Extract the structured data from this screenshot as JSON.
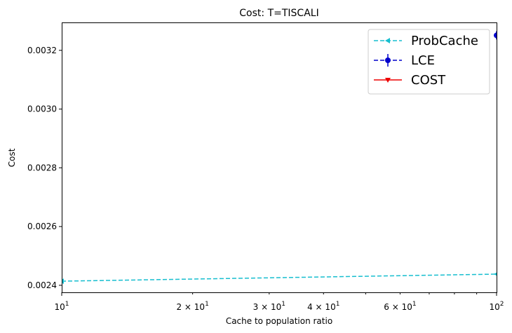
{
  "chart_data": {
    "type": "line",
    "title": "Cost: T=TISCALI",
    "xlabel": "Cache to population ratio",
    "ylabel": "Cost",
    "xscale": "log",
    "xlim": [
      10,
      100
    ],
    "ylim": [
      0.002376,
      0.003295
    ],
    "yticks": [
      0.0024,
      0.0026,
      0.0028,
      0.003,
      0.0032
    ],
    "ytick_labels": [
      "0.0024",
      "0.0026",
      "0.0028",
      "0.0030",
      "0.0032"
    ],
    "xticks_major": [
      10,
      100
    ],
    "xtick_major_labels": [
      [
        "10",
        "1"
      ],
      [
        "10",
        "2"
      ]
    ],
    "xticks_minor_labeled": [
      20,
      30,
      40,
      60
    ],
    "xtick_minor_labels": [
      [
        "2 × 10",
        "1"
      ],
      [
        "3 × 10",
        "1"
      ],
      [
        "4 × 10",
        "1"
      ],
      [
        "6 × 10",
        "1"
      ]
    ],
    "xticks_minor_unlabeled": [
      50,
      70,
      80,
      90
    ],
    "grid": false,
    "legend_position": "top-right",
    "series": [
      {
        "name": "ProbCache",
        "color": "#17becf",
        "line": "dashed",
        "marker": "triangle-left",
        "x": [
          10,
          100
        ],
        "y": [
          0.002414,
          0.002438
        ]
      },
      {
        "name": "LCE",
        "color": "#0000cc",
        "line": "dashed",
        "marker": "circle",
        "errorbar": true,
        "x": [
          100
        ],
        "y": [
          0.003251
        ]
      },
      {
        "name": "COST",
        "color": "#ee0000",
        "line": "solid",
        "marker": "triangle-down",
        "x": [],
        "y": []
      }
    ]
  }
}
